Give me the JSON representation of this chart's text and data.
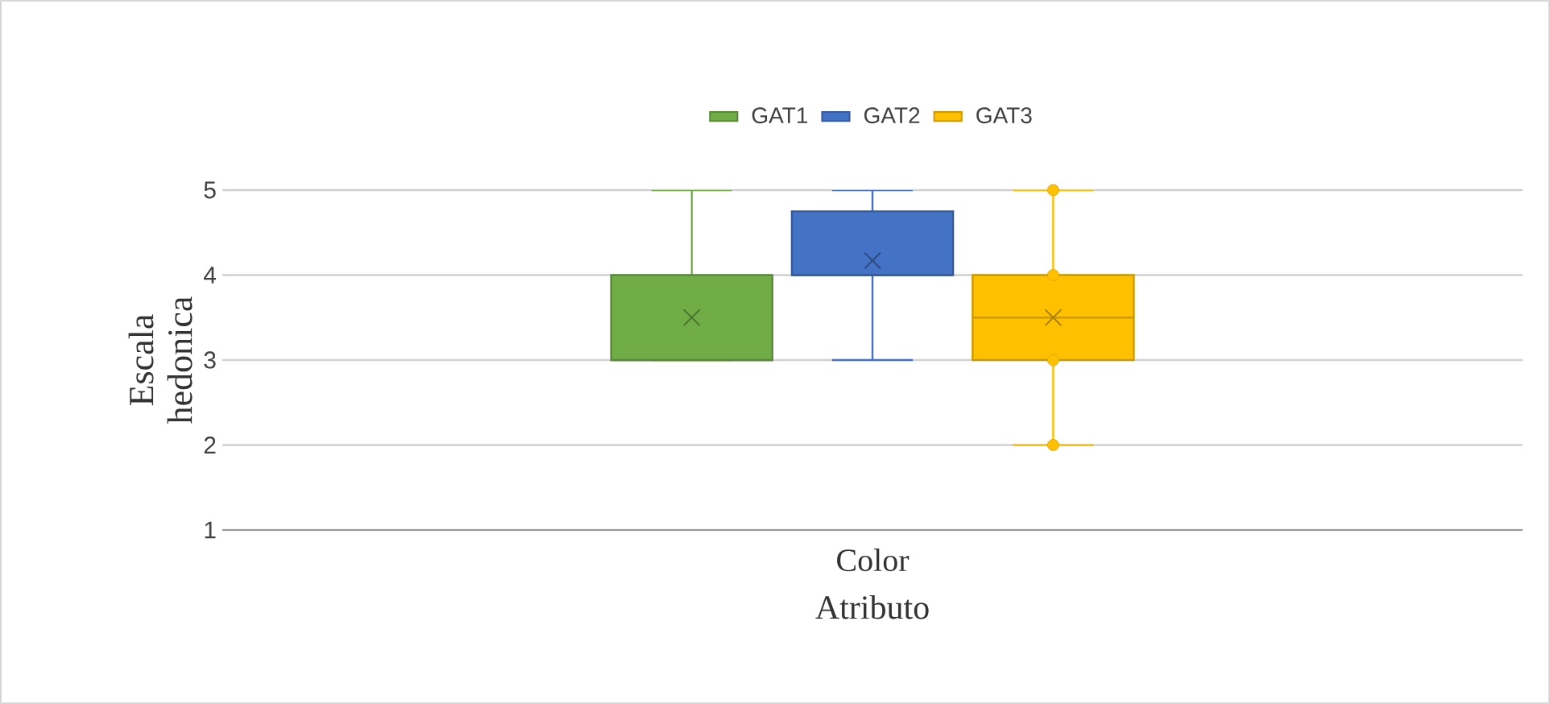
{
  "chart_data": {
    "type": "box",
    "xlabel": "Atributo",
    "ylabel": "Escala hedonica",
    "categories": [
      "Color"
    ],
    "series": [
      {
        "name": "GAT1",
        "color": "#70ad47",
        "boxes": [
          {
            "low": 3,
            "q1": 3,
            "median": 3,
            "q3": 4,
            "high": 5,
            "mean": 3.5
          }
        ]
      },
      {
        "name": "GAT2",
        "color": "#4472c4",
        "boxes": [
          {
            "low": 3,
            "q1": 4,
            "median": 4,
            "q3": 4.75,
            "high": 5,
            "mean": 4.17
          }
        ]
      },
      {
        "name": "GAT3",
        "color": "#ffc000",
        "boxes": [
          {
            "low": 2,
            "q1": 3,
            "median": 3.5,
            "q3": 4,
            "high": 5,
            "mean": 3.5,
            "outliers": [
              2,
              3,
              4,
              5
            ]
          }
        ]
      }
    ],
    "ylim": [
      1,
      5
    ],
    "yticks": [
      1,
      2,
      3,
      4,
      5
    ],
    "grid": "y",
    "legend": "top"
  }
}
